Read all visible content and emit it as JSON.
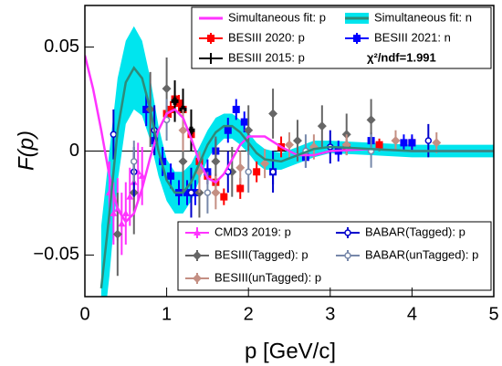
{
  "chart_data": {
    "type": "scatter",
    "x_label": "p [GeV/c]",
    "y_label": "F(p)",
    "annotation": "χ²/ndf=1.991",
    "xlim": [
      0,
      5
    ],
    "ylim": [
      -0.07,
      0.07
    ],
    "xticks": [
      0,
      1,
      2,
      3,
      4,
      5
    ],
    "yticks": [
      {
        "value": -0.05,
        "label": "−0.05"
      },
      0,
      0.05
    ],
    "fits": [
      {
        "name": "Simultaneous fit: p",
        "color": "#ff33ff",
        "x": [
          0,
          0.1,
          0.2,
          0.3,
          0.4,
          0.5,
          0.6,
          0.7,
          0.8,
          0.9,
          1.0,
          1.1,
          1.2,
          1.3,
          1.4,
          1.5,
          1.6,
          1.7,
          1.8,
          1.9,
          2.0,
          2.2,
          2.4,
          2.6,
          2.8,
          3.0,
          3.5,
          4.0,
          4.5,
          5.0
        ],
        "values": [
          0.046,
          0.03,
          0.01,
          -0.012,
          -0.028,
          -0.034,
          -0.03,
          -0.018,
          -0.003,
          0.01,
          0.018,
          0.02,
          0.016,
          0.006,
          -0.005,
          -0.013,
          -0.015,
          -0.011,
          -0.004,
          0.003,
          0.007,
          0.007,
          0.002,
          -0.002,
          -0.002,
          0,
          0.001,
          0,
          0,
          0
        ]
      },
      {
        "name": "Simultaneous fit: n",
        "color": "#2e8b7a",
        "band_color": "#00e5ee",
        "x": [
          0.2,
          0.3,
          0.4,
          0.5,
          0.6,
          0.7,
          0.8,
          0.9,
          1.0,
          1.1,
          1.2,
          1.3,
          1.4,
          1.5,
          1.6,
          1.7,
          1.8,
          1.9,
          2.0,
          2.1,
          2.2,
          2.4,
          2.6,
          2.8,
          3.0,
          3.5,
          4.0,
          4.5,
          5.0
        ],
        "values": [
          -0.066,
          -0.03,
          0.01,
          0.033,
          0.04,
          0.035,
          0.02,
          0,
          -0.014,
          -0.02,
          -0.02,
          -0.015,
          -0.006,
          0.003,
          0.009,
          0.012,
          0.012,
          0.009,
          0.004,
          -0.001,
          -0.004,
          -0.005,
          -0.002,
          0.001,
          0.002,
          0.001,
          0,
          0,
          0
        ],
        "band": [
          0.03,
          0.03,
          0.025,
          0.02,
          0.02,
          0.018,
          0.015,
          0.012,
          0.01,
          0.01,
          0.01,
          0.009,
          0.008,
          0.007,
          0.007,
          0.006,
          0.006,
          0.006,
          0.005,
          0.005,
          0.005,
          0.004,
          0.004,
          0.004,
          0.003,
          0.003,
          0.003,
          0.003,
          0.003
        ]
      }
    ],
    "series": [
      {
        "name": "BESIII 2020: p",
        "color": "#ff0000",
        "marker": "square",
        "x": [
          1.0,
          1.05,
          1.1,
          1.15,
          1.2,
          1.3,
          1.4,
          1.5,
          1.6,
          1.7,
          1.9,
          2.1,
          2.4,
          3.2,
          3.6,
          4.0
        ],
        "values": [
          0.018,
          0.02,
          0.025,
          0.023,
          0.02,
          0.008,
          -0.005,
          -0.012,
          -0.015,
          -0.022,
          -0.018,
          -0.01,
          0.002,
          0.002,
          0.003,
          0.004
        ],
        "errors": [
          0.004,
          0.004,
          0.004,
          0.004,
          0.004,
          0.004,
          0.004,
          0.004,
          0.004,
          0.004,
          0.005,
          0.005,
          0.005,
          0.003,
          0.003,
          0.003
        ]
      },
      {
        "name": "BESIII 2021: n",
        "color": "#0000ff",
        "marker": "square",
        "x": [
          0.75,
          0.85,
          0.95,
          1.05,
          1.15,
          1.25,
          1.35,
          1.5,
          1.6,
          1.75,
          1.85,
          1.95,
          2.3,
          2.7,
          3.1,
          3.5,
          3.9,
          4.0
        ],
        "values": [
          0.02,
          0.005,
          -0.005,
          -0.012,
          -0.02,
          -0.02,
          -0.02,
          -0.01,
          0,
          0.01,
          0.02,
          0.014,
          -0.01,
          -0.003,
          0,
          0.005,
          0.004,
          0.004
        ],
        "errors": [
          0.008,
          0.007,
          0.007,
          0.006,
          0.006,
          0.006,
          0.006,
          0.006,
          0.006,
          0.006,
          0.005,
          0.005,
          0.006,
          0.005,
          0.005,
          0.004,
          0.004,
          0.004
        ]
      },
      {
        "name": "BESIII 2015: p",
        "color": "#000000",
        "marker": "cross",
        "x": [
          1.1,
          1.2,
          1.3
        ],
        "values": [
          0.024,
          0.02,
          0.01
        ],
        "errors": [
          0.01,
          0.01,
          0.01
        ]
      },
      {
        "name": "CMD3 2019: p",
        "color": "#ff33ff",
        "marker": "triangle",
        "x": [
          0.3,
          0.35,
          0.4,
          0.45,
          0.5,
          0.55,
          0.6,
          0.65,
          0.7
        ],
        "values": [
          -0.02,
          -0.03,
          -0.028,
          -0.035,
          -0.03,
          -0.022,
          -0.015,
          -0.01,
          -0.012
        ],
        "errors": [
          0.015,
          0.015,
          0.015,
          0.015,
          0.015,
          0.014,
          0.014,
          0.014,
          0.014
        ]
      },
      {
        "name": "BESIII(Tagged): p",
        "color": "#666666",
        "marker": "diamond",
        "x": [
          0.4,
          0.6,
          0.8,
          1.0,
          1.2,
          1.4,
          1.6,
          1.8,
          2.0,
          2.3,
          2.6,
          2.9,
          3.2,
          3.5
        ],
        "values": [
          -0.04,
          -0.02,
          0.02,
          0.03,
          -0.005,
          -0.02,
          -0.005,
          -0.01,
          0.01,
          0.018,
          0.005,
          0.012,
          0.008,
          0.015
        ],
        "errors": [
          0.02,
          0.02,
          0.018,
          0.015,
          0.015,
          0.012,
          0.012,
          0.012,
          0.012,
          0.012,
          0.01,
          0.01,
          0.01,
          0.01
        ]
      },
      {
        "name": "BABAR(Tagged): p",
        "color": "#0000cc",
        "marker": "open-cross",
        "x": [
          0.35,
          0.6,
          0.85,
          1.3,
          1.75,
          2.3,
          3.0,
          4.2
        ],
        "values": [
          0.008,
          -0.01,
          0.01,
          -0.02,
          -0.01,
          -0.01,
          0.002,
          0.005
        ],
        "errors": [
          0.012,
          0.012,
          0.012,
          0.012,
          0.01,
          0.01,
          0.008,
          0.008
        ]
      },
      {
        "name": "BESIII(unTagged): p",
        "color": "#c48f83",
        "marker": "diamond",
        "x": [
          1.2,
          1.4,
          1.6,
          1.9,
          2.2,
          2.5,
          2.8,
          3.2,
          3.8,
          4.3
        ],
        "values": [
          0.01,
          -0.01,
          -0.02,
          -0.008,
          -0.006,
          0.003,
          0.002,
          0.003,
          0.005,
          0.004
        ],
        "errors": [
          0.01,
          0.01,
          0.008,
          0.008,
          0.007,
          0.006,
          0.006,
          0.005,
          0.005,
          0.005
        ]
      },
      {
        "name": "BABAR(unTagged): p",
        "color": "#7788aa",
        "marker": "open-cross",
        "x": [
          0.6,
          1.0,
          1.5,
          2.0,
          2.7,
          3.5
        ],
        "values": [
          -0.005,
          0.015,
          -0.02,
          -0.01,
          0,
          0
        ],
        "errors": [
          0.01,
          0.01,
          0.01,
          0.01,
          0.008,
          0.008
        ]
      }
    ]
  }
}
